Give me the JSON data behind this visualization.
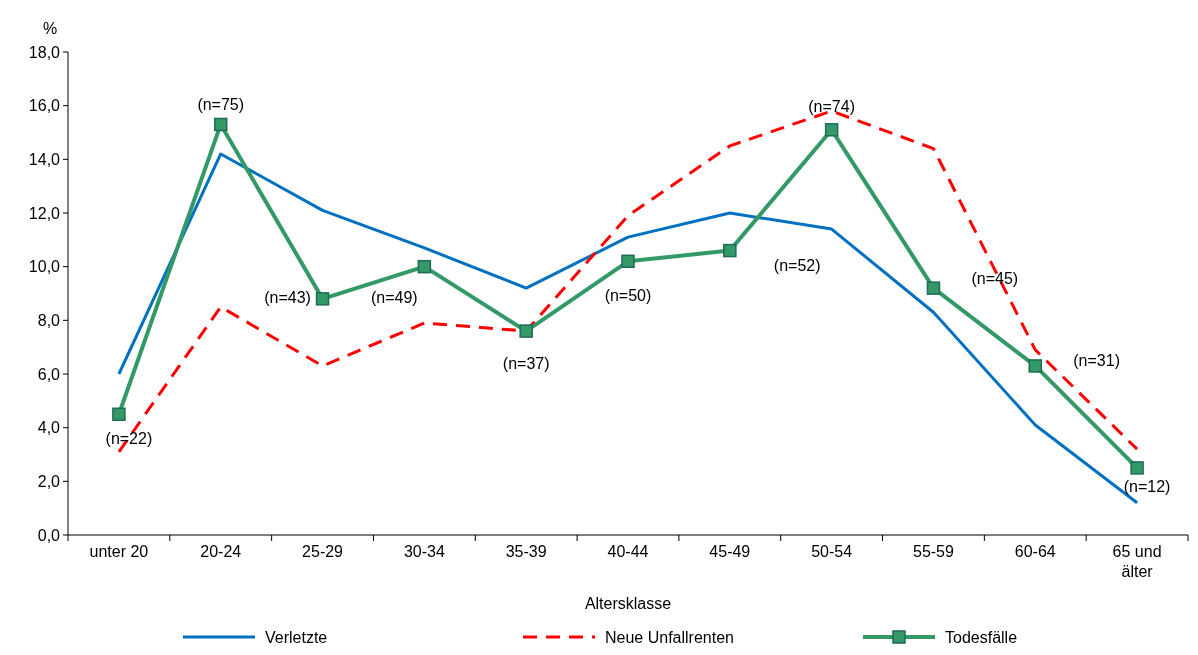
{
  "chart_data": {
    "type": "line",
    "xlabel": "Altersklasse",
    "ylabel": "%",
    "categories": [
      "unter 20",
      "20-24",
      "25-29",
      "30-34",
      "35-39",
      "40-44",
      "45-49",
      "50-54",
      "55-59",
      "60-64",
      "65 und älter"
    ],
    "series": [
      {
        "name": "Verletzte",
        "color": "#0070c0",
        "line_style": "solid",
        "marker": "none",
        "values": [
          6.0,
          14.2,
          12.1,
          10.7,
          9.2,
          11.1,
          12.0,
          11.4,
          8.3,
          4.1,
          1.2
        ]
      },
      {
        "name": "Neue Unfallrenten",
        "color": "#ff0000",
        "line_style": "dashed",
        "marker": "none",
        "values": [
          3.1,
          8.5,
          6.3,
          7.9,
          7.6,
          11.9,
          14.5,
          15.8,
          14.4,
          6.9,
          3.2
        ]
      },
      {
        "name": "Todesfälle",
        "color": "#339966",
        "line_style": "solid",
        "marker": "square",
        "values": [
          4.5,
          15.3,
          8.8,
          10.0,
          7.6,
          10.2,
          10.6,
          15.1,
          9.2,
          6.3,
          2.5
        ]
      }
    ],
    "ylim": [
      0,
      18
    ],
    "yticks": [
      {
        "value": 0,
        "label": "0,0"
      },
      {
        "value": 2,
        "label": "2,0"
      },
      {
        "value": 4,
        "label": "4,0"
      },
      {
        "value": 6,
        "label": "6,0"
      },
      {
        "value": 8,
        "label": "8,0"
      },
      {
        "value": 10,
        "label": "10,0"
      },
      {
        "value": 12,
        "label": "12,0"
      },
      {
        "value": 14,
        "label": "14,0"
      },
      {
        "value": 16,
        "label": "16,0"
      },
      {
        "value": 18,
        "label": "18,0"
      }
    ],
    "annotations": [
      {
        "text": "(n=22)",
        "x": "unter 20",
        "y": 4.5
      },
      {
        "text": "(n=75)",
        "x": "20-24",
        "y": 15.3
      },
      {
        "text": "(n=43)",
        "x": "25-29",
        "y": 8.8
      },
      {
        "text": "(n=49)",
        "x": "30-34",
        "y": 10.0
      },
      {
        "text": "(n=37)",
        "x": "35-39",
        "y": 7.6
      },
      {
        "text": "(n=50)",
        "x": "40-44",
        "y": 10.2
      },
      {
        "text": "(n=52)",
        "x": "45-49",
        "y": 10.6
      },
      {
        "text": "(n=74)",
        "x": "50-54",
        "y": 15.1
      },
      {
        "text": "(n=45)",
        "x": "55-59",
        "y": 9.2
      },
      {
        "text": "(n=31)",
        "x": "60-64",
        "y": 6.3
      },
      {
        "text": "(n=12)",
        "x": "65 und älter",
        "y": 2.5
      }
    ],
    "legend": "bottom"
  }
}
